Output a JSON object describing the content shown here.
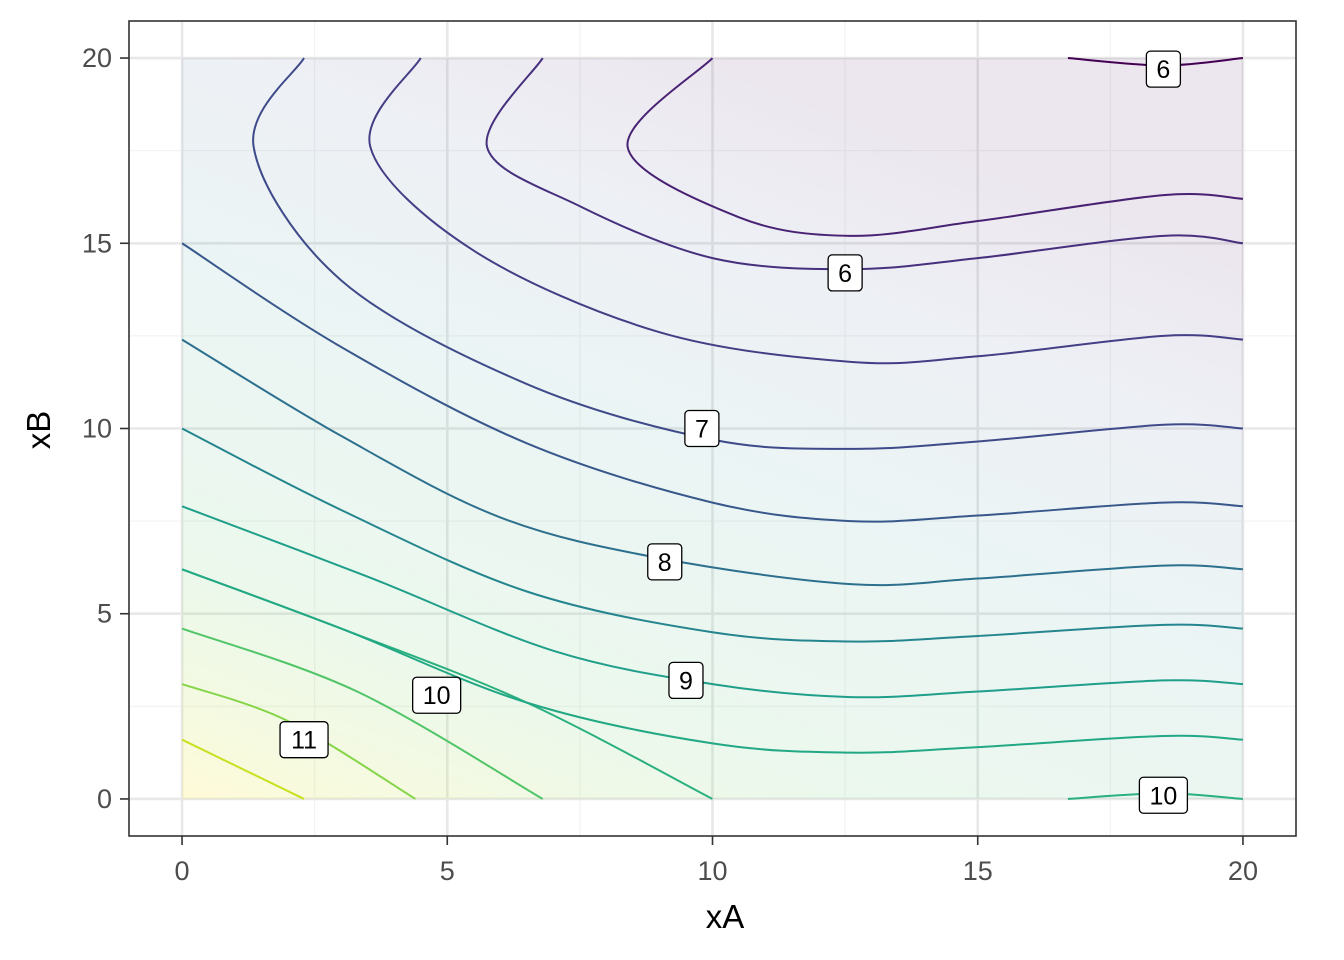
{
  "chart_data": {
    "type": "contour",
    "title": "",
    "xlabel": "xA",
    "ylabel": "xB",
    "xlim": [
      -1,
      21
    ],
    "ylim": [
      -1,
      21
    ],
    "x_ticks": [
      0,
      5,
      10,
      15,
      20
    ],
    "y_ticks": [
      0,
      5,
      10,
      15,
      20
    ],
    "x_tick_labels": [
      "0",
      "5",
      "10",
      "15",
      "20"
    ],
    "y_tick_labels": [
      "0",
      "5",
      "10",
      "15",
      "20"
    ],
    "grid": true,
    "fill": "viridis gradient, light",
    "colors": {
      "low": "#440154",
      "mid": "#21918c",
      "high": "#fde725",
      "panel_border": "#333333",
      "grid_major": "#e8e8e8",
      "grid_minor": "#f3f3f3"
    },
    "contour_lines": [
      {
        "color": "#c8e020",
        "points": [
          [
            0,
            1.6
          ],
          [
            2.3,
            0
          ]
        ]
      },
      {
        "color": "#86d549",
        "points": [
          [
            0,
            3.1
          ],
          [
            2.0,
            2.1
          ],
          [
            4.4,
            0
          ]
        ]
      },
      {
        "color": "#52c569",
        "points": [
          [
            0,
            4.6
          ],
          [
            3.3,
            2.9
          ],
          [
            6.8,
            0
          ]
        ]
      },
      {
        "color": "#2ab07f",
        "points": [
          [
            0,
            6.2
          ],
          [
            3.0,
            4.6
          ],
          [
            6.5,
            2.6
          ],
          [
            10.0,
            0
          ]
        ]
      },
      {
        "color": "#22a884",
        "points": [
          [
            0,
            6.2
          ],
          [
            3.0,
            4.6
          ],
          [
            6.5,
            2.6
          ],
          [
            10.0,
            1.5
          ],
          [
            12.6,
            1.25
          ],
          [
            15.0,
            1.4
          ],
          [
            18.5,
            1.7
          ],
          [
            20,
            1.6
          ]
        ]
      },
      {
        "color": "#1f9e89",
        "points": [
          [
            0,
            7.9
          ],
          [
            3.5,
            6.0
          ],
          [
            7.0,
            4.0
          ],
          [
            10.0,
            3.1
          ],
          [
            12.6,
            2.75
          ],
          [
            15.0,
            2.9
          ],
          [
            18.5,
            3.2
          ],
          [
            20,
            3.1
          ]
        ]
      },
      {
        "color": "#25858e",
        "points": [
          [
            0,
            10.0
          ],
          [
            3.0,
            7.8
          ],
          [
            6.5,
            5.6
          ],
          [
            10.0,
            4.5
          ],
          [
            12.6,
            4.25
          ],
          [
            15.0,
            4.4
          ],
          [
            18.5,
            4.7
          ],
          [
            20,
            4.6
          ]
        ]
      },
      {
        "color": "#2d708e",
        "points": [
          [
            0,
            12.4
          ],
          [
            3.0,
            9.8
          ],
          [
            6.0,
            7.6
          ],
          [
            9.0,
            6.5
          ],
          [
            12.6,
            5.8
          ],
          [
            15.0,
            5.95
          ],
          [
            18.5,
            6.3
          ],
          [
            20,
            6.2
          ]
        ]
      },
      {
        "color": "#38588c",
        "points": [
          [
            0,
            15.0
          ],
          [
            3.0,
            12.2
          ],
          [
            6.5,
            9.6
          ],
          [
            10.0,
            8.0
          ],
          [
            12.6,
            7.5
          ],
          [
            15.0,
            7.65
          ],
          [
            18.5,
            8.0
          ],
          [
            20,
            7.9
          ]
        ]
      },
      {
        "color": "#3e4a89",
        "points": [
          [
            2.3,
            20
          ],
          [
            1.35,
            17.6
          ],
          [
            3.0,
            14.0
          ],
          [
            6.5,
            11.2
          ],
          [
            10.0,
            9.7
          ],
          [
            12.6,
            9.45
          ],
          [
            15.0,
            9.65
          ],
          [
            18.5,
            10.1
          ],
          [
            20,
            10.0
          ]
        ]
      },
      {
        "color": "#433e85",
        "points": [
          [
            4.5,
            20
          ],
          [
            3.55,
            17.6
          ],
          [
            5.5,
            14.8
          ],
          [
            9.0,
            12.6
          ],
          [
            12.6,
            11.8
          ],
          [
            15.0,
            11.95
          ],
          [
            18.5,
            12.5
          ],
          [
            20,
            12.4
          ]
        ]
      },
      {
        "color": "#46307e",
        "points": [
          [
            6.8,
            20
          ],
          [
            5.75,
            17.6
          ],
          [
            7.5,
            16.0
          ],
          [
            10.0,
            14.6
          ],
          [
            12.6,
            14.3
          ],
          [
            15.0,
            14.6
          ],
          [
            18.5,
            15.2
          ],
          [
            20,
            15.0
          ]
        ]
      },
      {
        "color": "#482173",
        "points": [
          [
            10.0,
            20
          ],
          [
            8.4,
            17.6
          ],
          [
            10.5,
            15.7
          ],
          [
            12.6,
            15.2
          ],
          [
            15.0,
            15.6
          ],
          [
            18.5,
            16.3
          ],
          [
            20,
            16.2
          ]
        ]
      },
      {
        "color": "#440154",
        "points": [
          [
            16.7,
            20
          ],
          [
            18.5,
            19.8
          ],
          [
            20,
            20
          ]
        ]
      },
      {
        "color": "#2ab07f",
        "points": [
          [
            16.7,
            0
          ],
          [
            18.5,
            0.15
          ],
          [
            20,
            0
          ]
        ]
      }
    ],
    "contour_labels": [
      {
        "text": "6",
        "x": 18.5,
        "y": 19.7
      },
      {
        "text": "6",
        "x": 12.5,
        "y": 14.2
      },
      {
        "text": "7",
        "x": 9.8,
        "y": 10.0
      },
      {
        "text": "8",
        "x": 9.1,
        "y": 6.4
      },
      {
        "text": "9",
        "x": 9.5,
        "y": 3.2
      },
      {
        "text": "10",
        "x": 4.8,
        "y": 2.8
      },
      {
        "text": "11",
        "x": 2.3,
        "y": 1.6
      },
      {
        "text": "10",
        "x": 18.5,
        "y": 0.1
      }
    ]
  }
}
